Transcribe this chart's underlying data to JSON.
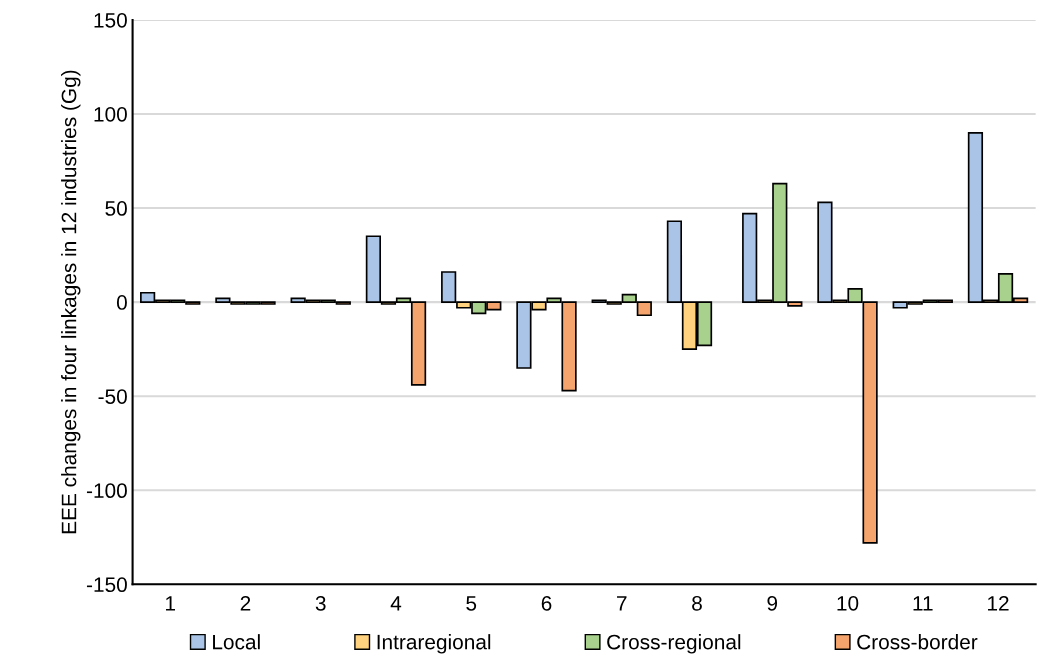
{
  "chart_data": {
    "type": "bar",
    "ylabel": "EEE changes in four linkages in 12 industries (Gg)",
    "categories": [
      "1",
      "2",
      "3",
      "4",
      "5",
      "6",
      "7",
      "8",
      "9",
      "10",
      "11",
      "12"
    ],
    "series": [
      {
        "name": "Local",
        "color": "#a9c4e6",
        "values": [
          5,
          2,
          2,
          35,
          16,
          -35,
          1,
          43,
          47,
          53,
          -3,
          90
        ]
      },
      {
        "name": "Intraregional",
        "color": "#ffd27f",
        "values": [
          1,
          -1,
          1,
          -1,
          -3,
          -4,
          -1,
          -25,
          1,
          1,
          -1,
          1
        ]
      },
      {
        "name": "Cross-regional",
        "color": "#a9d18e",
        "values": [
          1,
          -1,
          1,
          2,
          -6,
          2,
          4,
          -23,
          63,
          7,
          1,
          15
        ]
      },
      {
        "name": "Cross-border",
        "color": "#f4a46c",
        "values": [
          -1,
          -1,
          -1,
          -44,
          -4,
          -47,
          -7,
          null,
          -2,
          -128,
          1,
          2
        ]
      }
    ],
    "ylim": [
      -150,
      150
    ],
    "yticks": [
      -150,
      -100,
      -50,
      0,
      50,
      100,
      150
    ],
    "grid": "y",
    "legend": "bottom"
  }
}
